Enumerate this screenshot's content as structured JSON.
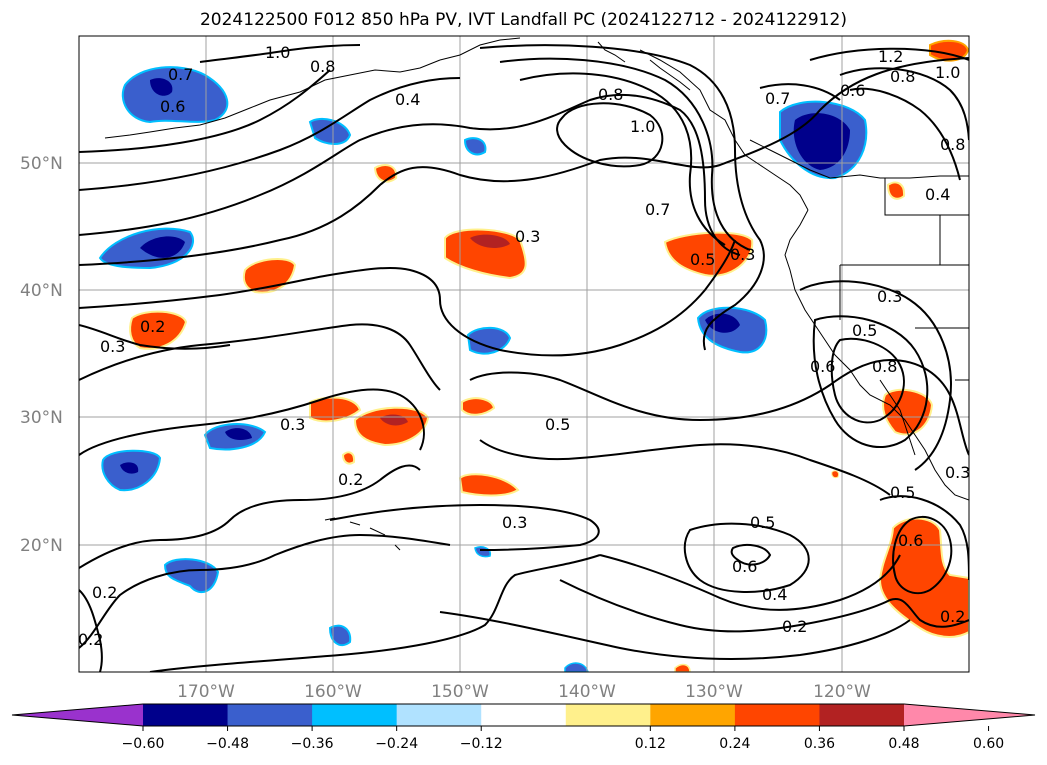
{
  "title": "2024122500 F012 850 hPa PV, IVT Landfall PC (2024122712 - 2024122912)",
  "map": {
    "lat_ticks": [
      "50°N",
      "40°N",
      "30°N",
      "20°N"
    ],
    "lon_ticks": [
      "170°W",
      "160°W",
      "150°W",
      "140°W",
      "130°W",
      "120°W"
    ],
    "grid": true,
    "contour_labels": [
      "1.0",
      "0.8",
      "0.7",
      "0.6",
      "0.4",
      "0.8",
      "1.0",
      "0.7",
      "1.2",
      "0.8",
      "1.0",
      "0.6",
      "0.7",
      "0.8",
      "0.4",
      "0.3",
      "0.5",
      "0.3",
      "0.2",
      "0.3",
      "0.3",
      "0.5",
      "0.2",
      "0.3",
      "0.5",
      "0.6",
      "0.4",
      "0.2",
      "0.5",
      "0.6",
      "0.2",
      "0.2",
      "0.2",
      "0.3",
      "0.5",
      "0.6",
      "0.8",
      "0.3"
    ]
  },
  "colorbar": {
    "ticks": [
      "−0.60",
      "−0.48",
      "−0.36",
      "−0.24",
      "−0.12",
      "0.12",
      "0.24",
      "0.36",
      "0.48",
      "0.60"
    ],
    "colors": [
      "#9a32cd",
      "#00008b",
      "#3a5fcd",
      "#00bfff",
      "#b0e2ff",
      "#ffffff",
      "#fff08c",
      "#ffa500",
      "#ff4500",
      "#b22222",
      "#ff88aa"
    ],
    "extend": "both"
  },
  "colors": {
    "neg_dark": "#00008b",
    "neg_mid": "#3a5fcd",
    "neg_light": "#00bfff",
    "pos_light": "#fff08c",
    "pos_mid": "#ffa500",
    "pos_strong": "#ff4500",
    "pos_dark": "#b22222"
  }
}
